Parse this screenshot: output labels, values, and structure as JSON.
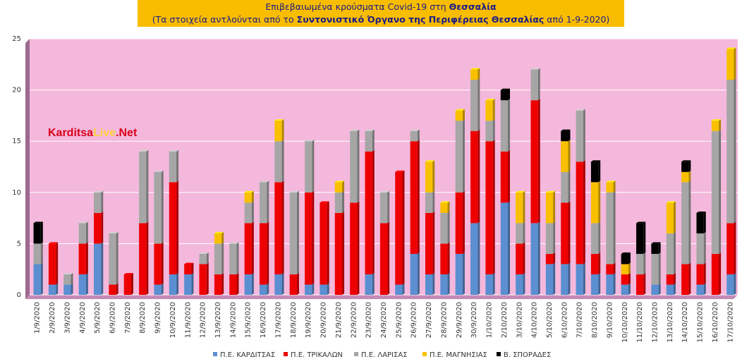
{
  "header": {
    "line1_prefix": "Επιβεβαιωμένα κρούσματα Covid-19 στη ",
    "line1_bold": "Θεσσαλία",
    "line2_prefix": "(Τα στοιχεία αντλούνται από το ",
    "line2_bold": "Συντονιστικό Όργανο της Περιφέρειας Θεσσαλίας",
    "line2_suffix": " από 1-9-2020)"
  },
  "watermark": {
    "part1": "Karditsa",
    "part2": "Live",
    "part3": ".Net"
  },
  "colors": {
    "plot_bg": "#f4b8dc",
    "wall_left": "#9c6a90",
    "floor": "#c48bb4",
    "grid": "#ffffff",
    "karditsa": "#5b8fd1",
    "trikala": "#ee0000",
    "larisa": "#a6a6a6",
    "magnisia": "#f9c000",
    "sporades": "#000000"
  },
  "chart_data": {
    "type": "bar",
    "stacked": true,
    "title": "",
    "xlabel": "",
    "ylabel": "",
    "ylim": [
      0,
      25
    ],
    "yticks": [
      0,
      5,
      10,
      15,
      20,
      25
    ],
    "grid": true,
    "legend_position": "bottom",
    "categories": [
      "1/9/2020",
      "2/9/2020",
      "3/9/2020",
      "4/9/2020",
      "5/9/2020",
      "6/9/2020",
      "7/9/2020",
      "8/9/2020",
      "9/9/2020",
      "10/9/2020",
      "11/9/2020",
      "12/9/2020",
      "13/9/2020",
      "14/9/2020",
      "15/9/2020",
      "16/9/2020",
      "17/9/2020",
      "18/9/2020",
      "19/9/2020",
      "20/9/2020",
      "21/9/2020",
      "22/9/2020",
      "23/9/2020",
      "24/9/2020",
      "25/9/2020",
      "26/9/2020",
      "27/9/2020",
      "28/9/2020",
      "29/9/2020",
      "30/9/2020",
      "1/10/2020",
      "2/10/2020",
      "3/10/2020",
      "4/10/2020",
      "5/10/2020",
      "6/10/2020",
      "7/10/2020",
      "8/10/2020",
      "9/10/2020",
      "10/10/2020",
      "11/10/2020",
      "12/10/2020",
      "13/10/2020",
      "14/10/2020",
      "15/10/2020",
      "16/10/2020",
      "17/10/2020"
    ],
    "series": [
      {
        "name": "Π.Ε. ΚΑΡΔΙΤΣΑΣ",
        "color_key": "karditsa",
        "values": [
          3,
          1,
          1,
          2,
          5,
          0,
          0,
          0,
          1,
          2,
          2,
          0,
          0,
          0,
          2,
          1,
          2,
          0,
          1,
          1,
          0,
          0,
          2,
          0,
          1,
          4,
          2,
          2,
          4,
          7,
          2,
          9,
          2,
          7,
          3,
          3,
          3,
          2,
          2,
          1,
          0,
          1,
          1,
          0,
          1,
          0,
          2
        ]
      },
      {
        "name": "Π.Ε. ΤΡΙΚΑΛΩΝ",
        "color_key": "trikala",
        "values": [
          0,
          4,
          0,
          3,
          3,
          1,
          2,
          7,
          4,
          9,
          1,
          3,
          2,
          2,
          5,
          6,
          9,
          2,
          9,
          8,
          8,
          9,
          12,
          7,
          11,
          11,
          6,
          3,
          6,
          9,
          13,
          5,
          3,
          12,
          1,
          6,
          10,
          2,
          1,
          1,
          2,
          0,
          1,
          3,
          2,
          4,
          5
        ]
      },
      {
        "name": "Π.Ε. ΛΑΡΙΣΑΣ",
        "color_key": "larisa",
        "values": [
          2,
          0,
          1,
          2,
          2,
          5,
          0,
          7,
          7,
          3,
          0,
          1,
          3,
          3,
          2,
          4,
          4,
          8,
          5,
          0,
          2,
          7,
          2,
          3,
          0,
          1,
          2,
          3,
          7,
          5,
          2,
          5,
          2,
          3,
          3,
          3,
          5,
          3,
          7,
          0,
          2,
          3,
          4,
          8,
          3,
          12,
          14
        ]
      },
      {
        "name": "Π.Ε. ΜΑΓΝΗΣΙΑΣ",
        "color_key": "magnisia",
        "values": [
          0,
          0,
          0,
          0,
          0,
          0,
          0,
          0,
          0,
          0,
          0,
          0,
          1,
          0,
          1,
          0,
          2,
          0,
          0,
          0,
          1,
          0,
          0,
          0,
          0,
          0,
          3,
          1,
          1,
          1,
          2,
          0,
          3,
          0,
          3,
          3,
          0,
          4,
          1,
          1,
          0,
          0,
          3,
          1,
          0,
          1,
          3
        ]
      },
      {
        "name": "Β. ΣΠΟΡΑΔΕΣ",
        "color_key": "sporades",
        "values": [
          2,
          0,
          0,
          0,
          0,
          0,
          0,
          0,
          0,
          0,
          0,
          0,
          0,
          0,
          0,
          0,
          0,
          0,
          0,
          0,
          0,
          0,
          0,
          0,
          0,
          0,
          0,
          0,
          0,
          0,
          0,
          1,
          0,
          0,
          0,
          1,
          0,
          2,
          0,
          1,
          3,
          1,
          0,
          1,
          2,
          0,
          0
        ]
      }
    ]
  }
}
